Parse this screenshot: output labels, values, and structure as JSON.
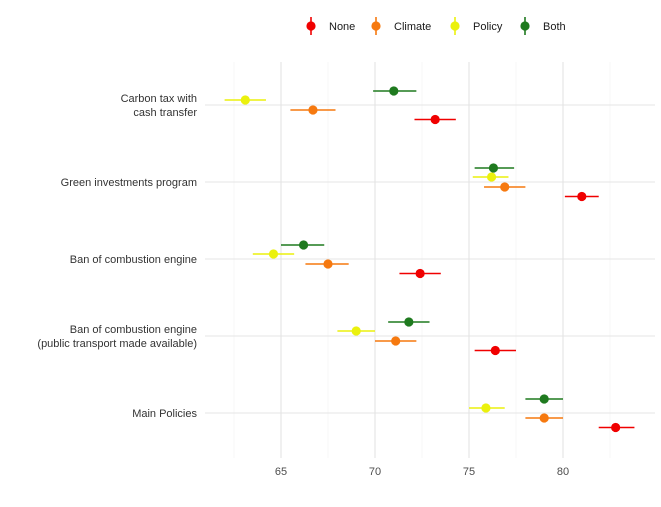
{
  "chart_data": {
    "type": "scatter",
    "subtype": "dot-and-whisker",
    "title": "",
    "xlabel": "",
    "ylabel": "",
    "xlim": [
      62.5,
      84.9
    ],
    "xticks": [
      65,
      70,
      75,
      80
    ],
    "grid": true,
    "legend_position": "top",
    "categories": [
      "Carbon tax with\ncash transfer",
      "Green investments program",
      "Ban of combustion engine",
      "Ban of combustion engine\n(public transport made available)",
      "Main Policies"
    ],
    "series": [
      {
        "name": "None",
        "color": "#f00000",
        "values": [
          73.2,
          81.0,
          72.4,
          76.4,
          82.8
        ],
        "ci_low": [
          72.1,
          80.1,
          71.3,
          75.3,
          81.9
        ],
        "ci_high": [
          74.3,
          81.9,
          73.5,
          77.5,
          83.8
        ]
      },
      {
        "name": "Climate",
        "color": "#f6790f",
        "values": [
          66.7,
          76.9,
          67.5,
          71.1,
          79.0
        ],
        "ci_low": [
          65.5,
          75.8,
          66.3,
          70.0,
          78.0
        ],
        "ci_high": [
          67.9,
          78.0,
          68.6,
          72.2,
          80.0
        ]
      },
      {
        "name": "Policy",
        "color": "#ebf10d",
        "values": [
          63.1,
          76.2,
          64.6,
          69.0,
          75.9
        ],
        "ci_low": [
          62.0,
          75.2,
          63.5,
          68.0,
          75.0
        ],
        "ci_high": [
          64.2,
          77.1,
          65.7,
          70.0,
          76.9
        ]
      },
      {
        "name": "Both",
        "color": "#1f7a1f",
        "values": [
          71.0,
          76.3,
          66.2,
          71.8,
          79.0
        ],
        "ci_low": [
          69.9,
          75.3,
          65.0,
          70.7,
          78.0
        ],
        "ci_high": [
          72.2,
          77.4,
          67.3,
          72.9,
          80.0
        ]
      }
    ]
  }
}
